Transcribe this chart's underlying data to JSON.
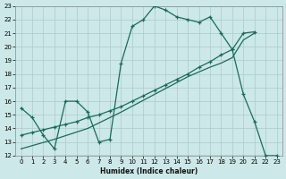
{
  "xlabel": "Humidex (Indice chaleur)",
  "bg_color": "#cce8e8",
  "grid_color": "#aacccc",
  "line_color": "#1a6b5a",
  "xlim": [
    -0.5,
    23.5
  ],
  "ylim": [
    12,
    23
  ],
  "xticks": [
    0,
    1,
    2,
    3,
    4,
    5,
    6,
    7,
    8,
    9,
    10,
    11,
    12,
    13,
    14,
    15,
    16,
    17,
    18,
    19,
    20,
    21,
    22,
    23
  ],
  "yticks": [
    12,
    13,
    14,
    15,
    16,
    17,
    18,
    19,
    20,
    21,
    22,
    23
  ],
  "line1_x": [
    0,
    1,
    2,
    3,
    4,
    5,
    6,
    7,
    8,
    9,
    10,
    11,
    12,
    13,
    14,
    15,
    16,
    17,
    18,
    19,
    20,
    21,
    22,
    23
  ],
  "line1_y": [
    15.5,
    14.8,
    13.5,
    12.5,
    16.0,
    16.0,
    15.2,
    13.0,
    13.2,
    18.8,
    21.5,
    22.0,
    23.0,
    22.7,
    22.2,
    22.0,
    21.8,
    22.2,
    21.0,
    19.8,
    16.5,
    14.5,
    12.0,
    12.0
  ],
  "line2_x": [
    3,
    4,
    5,
    6,
    7,
    8,
    9,
    10,
    11,
    12,
    13,
    14,
    15,
    16,
    17,
    18,
    19,
    20,
    21,
    22,
    23
  ],
  "line2_y": [
    12.0,
    12.0,
    12.0,
    12.0,
    12.0,
    12.0,
    12.0,
    12.0,
    12.0,
    12.0,
    12.0,
    12.0,
    12.0,
    12.0,
    12.0,
    12.0,
    12.0,
    12.0,
    12.0,
    12.0,
    12.0
  ],
  "line3_x": [
    0,
    1,
    2,
    3,
    4,
    5,
    6,
    7,
    8,
    9,
    10,
    11,
    12,
    13,
    14,
    15,
    16,
    17,
    18,
    19,
    20,
    21
  ],
  "line3_y": [
    13.5,
    13.7,
    13.9,
    14.1,
    14.3,
    14.5,
    14.8,
    15.0,
    15.3,
    15.6,
    16.0,
    16.4,
    16.8,
    17.2,
    17.6,
    18.0,
    18.5,
    18.9,
    19.4,
    19.8,
    21.0,
    21.1
  ],
  "line4_x": [
    0,
    3,
    6,
    9,
    12,
    15,
    17,
    18,
    19,
    20,
    21
  ],
  "line4_y": [
    12.5,
    13.2,
    14.0,
    15.2,
    16.5,
    17.8,
    18.5,
    18.8,
    19.2,
    20.5,
    21.0
  ]
}
